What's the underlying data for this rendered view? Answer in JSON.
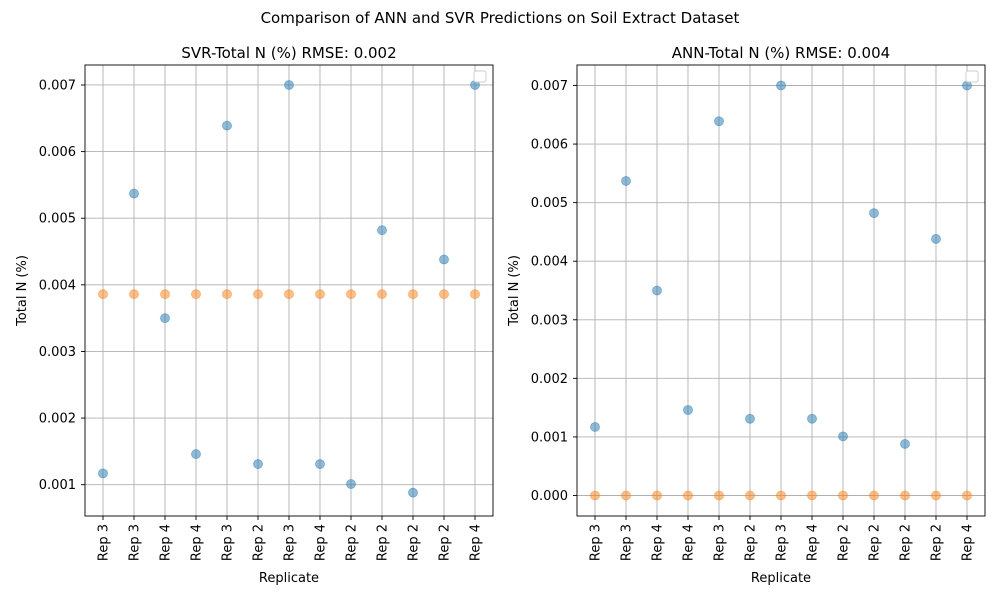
{
  "figure_title": "Comparison of ANN and SVR Predictions on Soil Extract Dataset",
  "colors": {
    "series_blue": "#1f77b4",
    "series_orange": "#ff7f0e",
    "grid": "#b0b0b0"
  },
  "chart_data": [
    {
      "type": "scatter",
      "title": "SVR-Total N (%) RMSE: 0.002",
      "xlabel": "Replicate",
      "ylabel": "Total N (%)",
      "categories": [
        "Rep 3",
        "Rep 3",
        "Rep 4",
        "Rep 4",
        "Rep 3",
        "Rep 2",
        "Rep 3",
        "Rep 4",
        "Rep 2",
        "Rep 2",
        "Rep 2",
        "Rep 2",
        "Rep 4"
      ],
      "ylim": [
        0.00053,
        0.0073
      ],
      "yticks": [
        0.001,
        0.002,
        0.003,
        0.004,
        0.005,
        0.006,
        0.007
      ],
      "ytick_labels": [
        "0.001",
        "0.002",
        "0.003",
        "0.004",
        "0.005",
        "0.006",
        "0.007"
      ],
      "grid": true,
      "legend": "top-right (empty)",
      "series": [
        {
          "values": [
            0.00117,
            0.00537,
            0.0035,
            0.00146,
            0.00639,
            0.00131,
            0.007,
            0.00131,
            0.00101,
            0.00482,
            0.00088,
            0.00438,
            0.007
          ],
          "color": "#1f77b4"
        },
        {
          "values": [
            0.00386,
            0.00386,
            0.00386,
            0.00386,
            0.00386,
            0.00386,
            0.00386,
            0.00386,
            0.00386,
            0.00386,
            0.00386,
            0.00386,
            0.00386
          ],
          "color": "#ff7f0e"
        }
      ]
    },
    {
      "type": "scatter",
      "title": "ANN-Total N (%) RMSE: 0.004",
      "xlabel": "Replicate",
      "ylabel": "Total N (%)",
      "categories": [
        "Rep 3",
        "Rep 3",
        "Rep 4",
        "Rep 4",
        "Rep 3",
        "Rep 2",
        "Rep 3",
        "Rep 4",
        "Rep 2",
        "Rep 2",
        "Rep 2",
        "Rep 2",
        "Rep 4"
      ],
      "ylim": [
        -0.00035,
        0.00735
      ],
      "yticks": [
        0.0,
        0.001,
        0.002,
        0.003,
        0.004,
        0.005,
        0.006,
        0.007
      ],
      "ytick_labels": [
        "0.000",
        "0.001",
        "0.002",
        "0.003",
        "0.004",
        "0.005",
        "0.006",
        "0.007"
      ],
      "grid": true,
      "legend": "top-right (empty)",
      "series": [
        {
          "values": [
            0.00117,
            0.00537,
            0.0035,
            0.00146,
            0.00639,
            0.00131,
            0.007,
            0.00131,
            0.00101,
            0.00482,
            0.00088,
            0.00438,
            0.007
          ],
          "color": "#1f77b4"
        },
        {
          "values": [
            0.0,
            0.0,
            0.0,
            0.0,
            0.0,
            0.0,
            0.0,
            0.0,
            0.0,
            0.0,
            0.0,
            0.0,
            0.0
          ],
          "color": "#ff7f0e"
        }
      ]
    }
  ]
}
